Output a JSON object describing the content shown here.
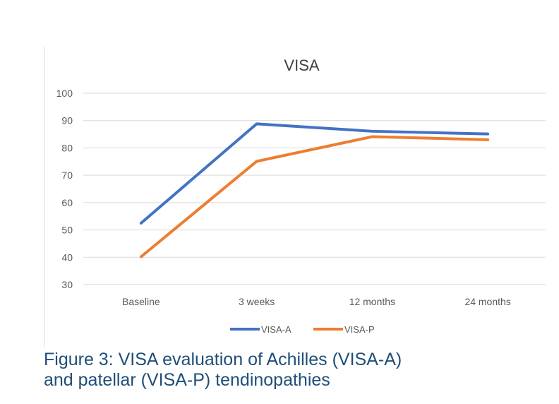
{
  "chart_data": {
    "type": "line",
    "title": "VISA",
    "categories": [
      "Baseline",
      "3 weeks",
      "12 months",
      "24 months"
    ],
    "series": [
      {
        "name": "VISA-A",
        "values": [
          52.5,
          88.8,
          86.1,
          85.1
        ],
        "color": "#4472c4"
      },
      {
        "name": "VISA-P",
        "values": [
          40.2,
          75.1,
          84.1,
          83.0
        ],
        "color": "#ed7d31"
      }
    ],
    "ylim": [
      30,
      100
    ],
    "yticks": [
      30,
      40,
      50,
      60,
      70,
      80,
      90,
      100
    ],
    "grid": true,
    "legend": "bottom"
  },
  "caption": {
    "line1": "Figure 3: VISA evaluation of Achilles (VISA-A)",
    "line2": "and patellar (VISA-P) tendinopathies"
  }
}
